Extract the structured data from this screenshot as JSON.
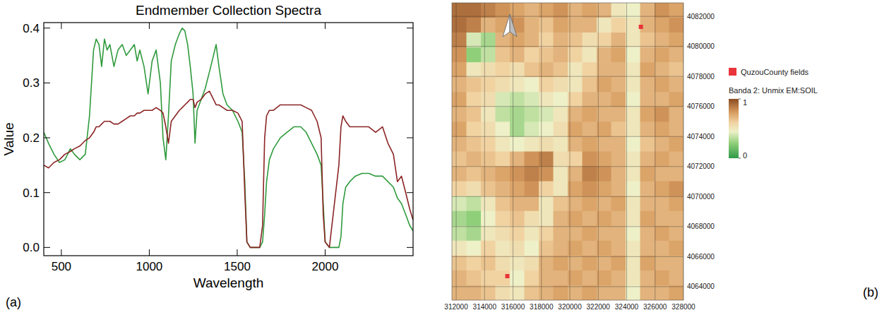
{
  "chart_data": [
    {
      "type": "line",
      "title": "Endmember Collection Spectra",
      "x_label": "Wavelength",
      "y_label": "Value",
      "panel_label": "(a)",
      "grid": false,
      "x": [
        400,
        427,
        458,
        489,
        520,
        551,
        574,
        605,
        636,
        660,
        683,
        698,
        714,
        729,
        745,
        760,
        776,
        799,
        822,
        846,
        869,
        892,
        915,
        931,
        946,
        970,
        993,
        1016,
        1039,
        1063,
        1078,
        1094,
        1109,
        1125,
        1148,
        1171,
        1187,
        1202,
        1218,
        1233,
        1249,
        1260,
        1272,
        1295,
        1318,
        1342,
        1365,
        1380,
        1396,
        1419,
        1442,
        1473,
        1504,
        1528,
        1543,
        1555,
        1574,
        1628,
        1644,
        1656,
        1667,
        1683,
        1706,
        1745,
        1783,
        1822,
        1861,
        1892,
        1923,
        1954,
        1977,
        1989,
        2000,
        2024,
        2078,
        2090,
        2101,
        2117,
        2140,
        2171,
        2210,
        2248,
        2287,
        2326,
        2357,
        2388,
        2411,
        2434,
        2458,
        2481,
        2500
      ],
      "series": [
        {
          "color": "#2f9a3c",
          "values": [
            0.21,
            0.19,
            0.17,
            0.155,
            0.16,
            0.18,
            0.17,
            0.16,
            0.17,
            0.24,
            0.36,
            0.38,
            0.37,
            0.33,
            0.38,
            0.36,
            0.37,
            0.33,
            0.36,
            0.37,
            0.35,
            0.36,
            0.37,
            0.34,
            0.36,
            0.33,
            0.28,
            0.34,
            0.36,
            0.3,
            0.2,
            0.16,
            0.24,
            0.34,
            0.37,
            0.39,
            0.4,
            0.395,
            0.37,
            0.33,
            0.28,
            0.19,
            0.25,
            0.27,
            0.29,
            0.32,
            0.35,
            0.37,
            0.33,
            0.28,
            0.26,
            0.25,
            0.23,
            0.21,
            0.12,
            0.01,
            0,
            0,
            0.01,
            0.06,
            0.12,
            0.16,
            0.18,
            0.2,
            0.21,
            0.22,
            0.22,
            0.21,
            0.19,
            0.17,
            0.15,
            0.08,
            0.01,
            0,
            0,
            0.02,
            0.08,
            0.11,
            0.12,
            0.13,
            0.135,
            0.135,
            0.13,
            0.13,
            0.12,
            0.11,
            0.09,
            0.08,
            0.06,
            0.04,
            0.03
          ]
        },
        {
          "color": "#8b2424",
          "values": [
            0.15,
            0.145,
            0.155,
            0.16,
            0.17,
            0.175,
            0.18,
            0.185,
            0.195,
            0.2,
            0.21,
            0.22,
            0.22,
            0.225,
            0.23,
            0.23,
            0.23,
            0.225,
            0.225,
            0.23,
            0.235,
            0.24,
            0.24,
            0.245,
            0.245,
            0.25,
            0.25,
            0.25,
            0.255,
            0.25,
            0.245,
            0.22,
            0.19,
            0.23,
            0.24,
            0.25,
            0.255,
            0.26,
            0.265,
            0.27,
            0.27,
            0.255,
            0.265,
            0.27,
            0.28,
            0.285,
            0.27,
            0.26,
            0.26,
            0.255,
            0.25,
            0.25,
            0.245,
            0.23,
            0.1,
            0.01,
            0,
            0,
            0.04,
            0.2,
            0.24,
            0.25,
            0.25,
            0.26,
            0.26,
            0.26,
            0.26,
            0.255,
            0.25,
            0.23,
            0.2,
            0.06,
            0.01,
            0,
            0.15,
            0.22,
            0.24,
            0.23,
            0.22,
            0.22,
            0.22,
            0.22,
            0.21,
            0.22,
            0.19,
            0.17,
            0.12,
            0.13,
            0.1,
            0.07,
            0.05
          ]
        }
      ],
      "xlim": [
        400,
        2500
      ],
      "ylim": [
        -0.015,
        0.41
      ],
      "xticks": [
        500,
        1000,
        1500,
        2000
      ],
      "yticks": [
        {
          "value": 0,
          "label": "0.0"
        },
        0.1,
        0.2,
        0.3,
        0.4
      ]
    },
    {
      "type": "heatmap",
      "panel_label": "(b)",
      "grid": true,
      "legend": "right",
      "xlim": [
        311700,
        328000
      ],
      "ylim": [
        4063100,
        4082900
      ],
      "xticks": [
        312000,
        314000,
        316000,
        318000,
        320000,
        322000,
        324000,
        326000,
        328000
      ],
      "yticks": [
        4064000,
        4066000,
        4068000,
        4070000,
        4072000,
        4074000,
        4076000,
        4078000,
        4080000,
        4082000
      ],
      "cells": [
        [
          0.9,
          0.9,
          0.85,
          0.8,
          0.75,
          0.7,
          0.75,
          0.8,
          0.7,
          0.75,
          0.7,
          0.5,
          0.45,
          0.7,
          0.8,
          0.75
        ],
        [
          0.9,
          0.85,
          0.7,
          0.75,
          0.8,
          0.7,
          0.65,
          0.75,
          0.7,
          0.7,
          0.5,
          0.6,
          0.5,
          0.7,
          0.75,
          0.8
        ],
        [
          0.85,
          0.4,
          0.3,
          0.7,
          0.75,
          0.7,
          0.6,
          0.7,
          0.65,
          0.55,
          0.6,
          0.7,
          0.5,
          0.65,
          0.7,
          0.75
        ],
        [
          0.8,
          0.25,
          0.35,
          0.65,
          0.7,
          0.6,
          0.65,
          0.7,
          0.6,
          0.5,
          0.7,
          0.75,
          0.45,
          0.7,
          0.75,
          0.7
        ],
        [
          0.75,
          0.5,
          0.55,
          0.6,
          0.55,
          0.65,
          0.7,
          0.65,
          0.5,
          0.6,
          0.7,
          0.7,
          0.5,
          0.75,
          0.7,
          0.65
        ],
        [
          0.7,
          0.65,
          0.6,
          0.55,
          0.5,
          0.45,
          0.6,
          0.55,
          0.5,
          0.65,
          0.75,
          0.7,
          0.5,
          0.7,
          0.75,
          0.7
        ],
        [
          0.75,
          0.6,
          0.55,
          0.4,
          0.35,
          0.4,
          0.5,
          0.45,
          0.6,
          0.7,
          0.7,
          0.75,
          0.45,
          0.7,
          0.7,
          0.75
        ],
        [
          0.7,
          0.65,
          0.5,
          0.35,
          0.3,
          0.35,
          0.4,
          0.5,
          0.7,
          0.75,
          0.7,
          0.7,
          0.5,
          0.75,
          0.8,
          0.7
        ],
        [
          0.75,
          0.6,
          0.55,
          0.45,
          0.3,
          0.4,
          0.45,
          0.55,
          0.75,
          0.7,
          0.75,
          0.65,
          0.5,
          0.7,
          0.75,
          0.7
        ],
        [
          0.7,
          0.65,
          0.6,
          0.5,
          0.45,
          0.5,
          0.55,
          0.5,
          0.7,
          0.75,
          0.7,
          0.7,
          0.45,
          0.65,
          0.7,
          0.75
        ],
        [
          0.65,
          0.7,
          0.65,
          0.6,
          0.7,
          0.8,
          0.85,
          0.55,
          0.6,
          0.8,
          0.75,
          0.7,
          0.5,
          0.7,
          0.75,
          0.7
        ],
        [
          0.7,
          0.65,
          0.7,
          0.75,
          0.8,
          0.85,
          0.8,
          0.5,
          0.7,
          0.85,
          0.8,
          0.7,
          0.5,
          0.75,
          0.7,
          0.7
        ],
        [
          0.6,
          0.55,
          0.65,
          0.7,
          0.75,
          0.8,
          0.6,
          0.5,
          0.75,
          0.8,
          0.75,
          0.7,
          0.45,
          0.7,
          0.75,
          0.8
        ],
        [
          0.4,
          0.35,
          0.5,
          0.65,
          0.7,
          0.7,
          0.5,
          0.65,
          0.7,
          0.75,
          0.7,
          0.75,
          0.5,
          0.7,
          0.7,
          0.75
        ],
        [
          0.3,
          0.25,
          0.45,
          0.6,
          0.65,
          0.55,
          0.5,
          0.7,
          0.75,
          0.7,
          0.75,
          0.7,
          0.5,
          0.75,
          0.7,
          0.7
        ],
        [
          0.35,
          0.3,
          0.5,
          0.55,
          0.6,
          0.5,
          0.6,
          0.7,
          0.7,
          0.75,
          0.7,
          0.7,
          0.45,
          0.7,
          0.75,
          0.7
        ],
        [
          0.5,
          0.45,
          0.6,
          0.5,
          0.55,
          0.45,
          0.65,
          0.7,
          0.75,
          0.7,
          0.75,
          0.7,
          0.5,
          0.7,
          0.7,
          0.75
        ],
        [
          0.65,
          0.6,
          0.65,
          0.55,
          0.5,
          0.55,
          0.7,
          0.75,
          0.7,
          0.75,
          0.7,
          0.75,
          0.5,
          0.75,
          0.7,
          0.7
        ],
        [
          0.7,
          0.65,
          0.6,
          0.6,
          0.45,
          0.6,
          0.7,
          0.7,
          0.75,
          0.7,
          0.75,
          0.7,
          0.5,
          0.7,
          0.75,
          0.7
        ],
        [
          0.7,
          0.7,
          0.65,
          0.55,
          0.5,
          0.65,
          0.7,
          0.75,
          0.7,
          0.75,
          0.7,
          0.7,
          0.45,
          0.7,
          0.7,
          0.75
        ]
      ],
      "colorbar": {
        "title": "Banda 2: Unmix EM:SOIL",
        "range": [
          0,
          1
        ],
        "ticks": [
          0,
          1
        ]
      },
      "series": [
        {
          "name": "QuzouCounty fields",
          "type": "scatter",
          "marker": "square",
          "color": "#e8343a",
          "x": [
            325000,
            315600
          ],
          "values": [
            4081300,
            4064700
          ]
        }
      ]
    }
  ]
}
